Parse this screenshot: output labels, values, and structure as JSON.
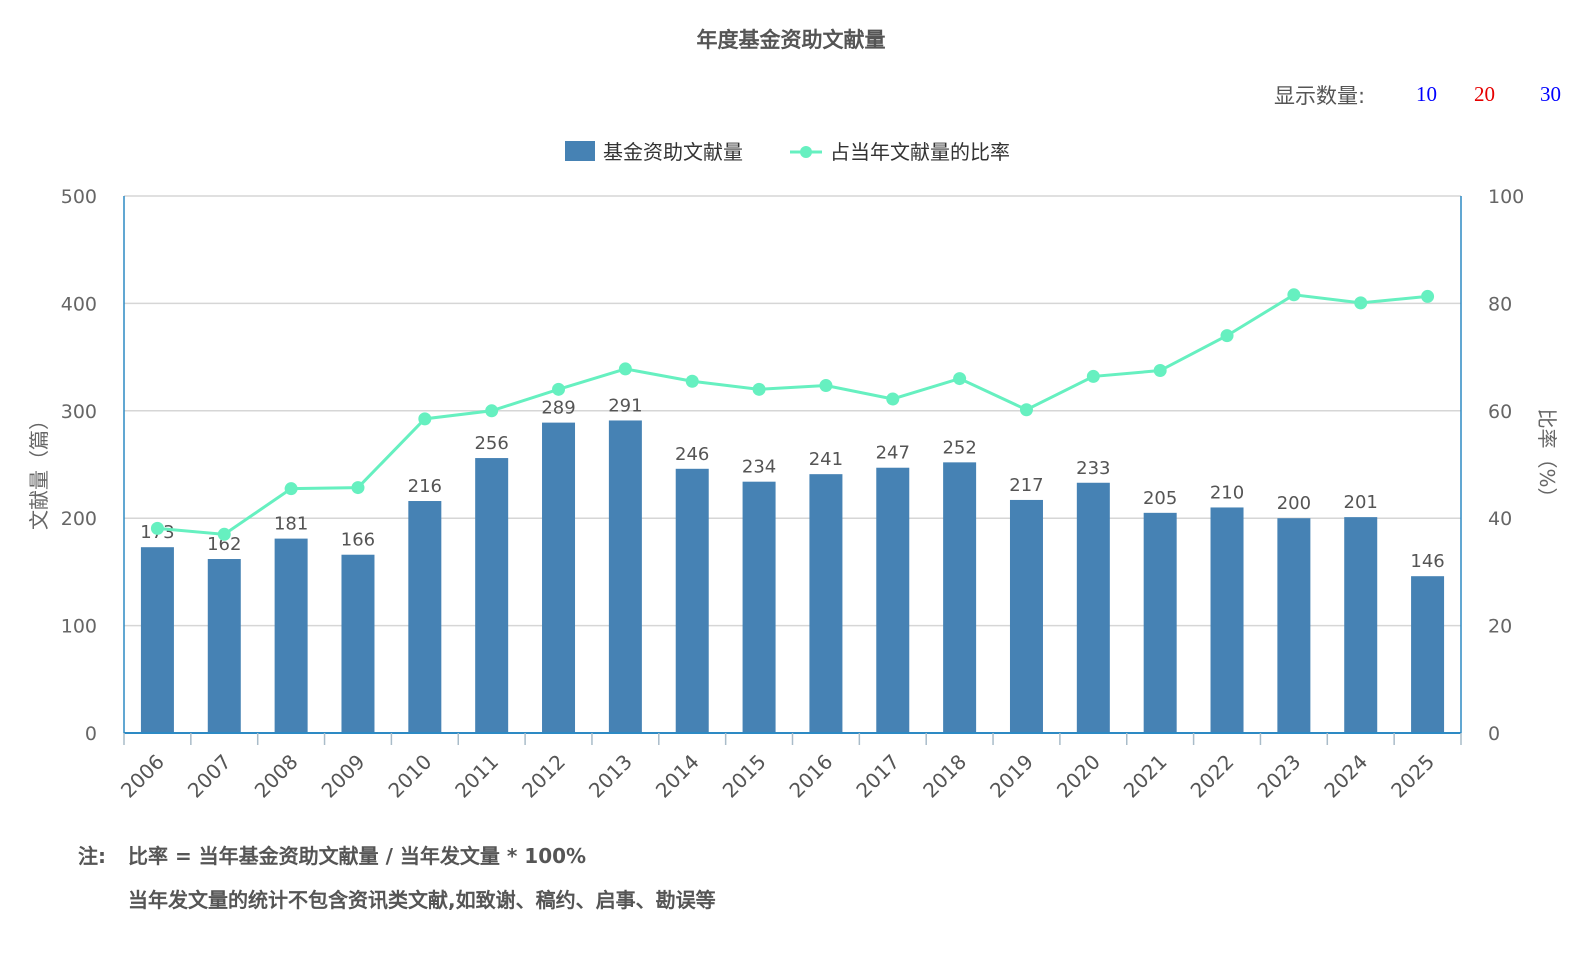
{
  "title": "年度基金资助文献量",
  "count_selector": {
    "label": "显示数量:",
    "options": [
      {
        "label": "10",
        "color": "#0000ff"
      },
      {
        "label": "20",
        "color": "#e60000"
      },
      {
        "label": "30",
        "color": "#0000ff"
      }
    ]
  },
  "notes": {
    "prefix": "注:",
    "formula": "比率 = 当年基金资助文献量 / 当年发文量 * 100%",
    "detail": "当年发文量的统计不包含资讯类文献,如致谢、稿约、启事、勘误等"
  },
  "chart_data": {
    "type": "bar",
    "title": "年度基金资助文献量",
    "categories": [
      "2006",
      "2007",
      "2008",
      "2009",
      "2010",
      "2011",
      "2012",
      "2013",
      "2014",
      "2015",
      "2016",
      "2017",
      "2018",
      "2019",
      "2020",
      "2021",
      "2022",
      "2023",
      "2024",
      "2025"
    ],
    "ylabel": "文献量（篇）",
    "y2label": "比率（%）",
    "ylim": [
      0,
      500
    ],
    "y2lim": [
      0,
      100
    ],
    "yticks": [
      "0",
      "100",
      "200",
      "300",
      "400",
      "500"
    ],
    "y2ticks": [
      "0",
      "20",
      "40",
      "60",
      "80",
      "100"
    ],
    "grid": true,
    "legend_position": "top-center",
    "series": [
      {
        "name": "基金资助文献量",
        "type": "bar",
        "axis": "left",
        "color": "#4682b4",
        "values": [
          173,
          162,
          181,
          166,
          216,
          256,
          289,
          291,
          246,
          234,
          241,
          247,
          252,
          217,
          233,
          205,
          210,
          200,
          201,
          146
        ],
        "labels": [
          "173",
          "162",
          "181",
          "166",
          "216",
          "256",
          "289",
          "291",
          "246",
          "234",
          "241",
          "247",
          "252",
          "217",
          "233",
          "205",
          "210",
          "200",
          "201",
          "146"
        ]
      },
      {
        "name": "占当年文献量的比率",
        "type": "line",
        "axis": "right",
        "color": "#66f0c0",
        "values": [
          38.1,
          37.0,
          45.5,
          45.7,
          58.5,
          60.0,
          64.0,
          67.8,
          65.5,
          64.0,
          64.7,
          62.2,
          66.0,
          60.2,
          66.4,
          67.5,
          74.0,
          81.6,
          80.1,
          81.3
        ]
      }
    ]
  }
}
